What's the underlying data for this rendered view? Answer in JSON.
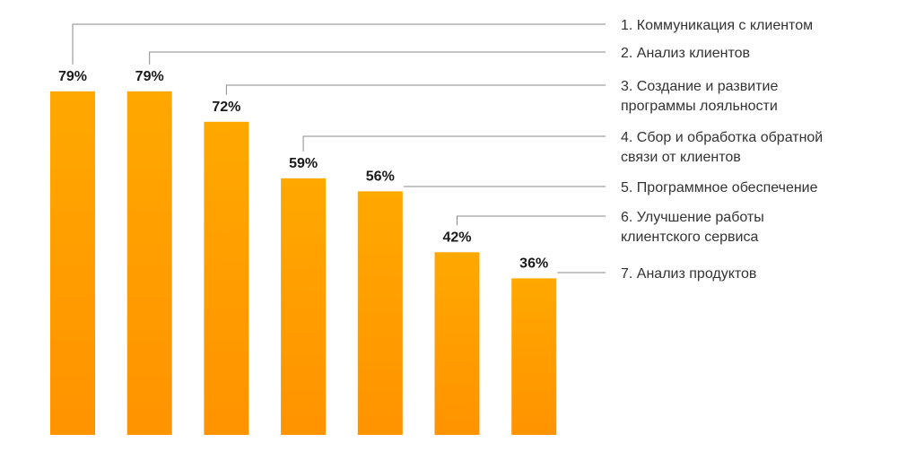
{
  "chart_data": {
    "type": "bar",
    "categories": [
      "1. Коммуникация с клиентом",
      "2. Анализ клиентов",
      "3. Создание и развитие программы лояльности",
      "4. Сбор и обработка обратной связи от клиентов",
      "5. Программное обеспечение",
      "6. Улучшение работы клиентского сервиса",
      "7. Анализ продуктов"
    ],
    "category_label_lines": [
      [
        "1. Коммуникация с клиентом"
      ],
      [
        "2. Анализ клиентов"
      ],
      [
        "3. Создание и развитие",
        "программы лояльности"
      ],
      [
        "4. Сбор и обработка обратной",
        "связи от клиентов"
      ],
      [
        "5. Программное обеспечение"
      ],
      [
        "6. Улучшение работы",
        "клиентского сервиса"
      ],
      [
        "7. Анализ продуктов"
      ]
    ],
    "values": [
      79,
      79,
      72,
      59,
      56,
      42,
      36
    ],
    "value_labels": [
      "79%",
      "79%",
      "72%",
      "59%",
      "56%",
      "42%",
      "36%"
    ],
    "ylim": [
      0,
      100
    ],
    "grid": false,
    "legend": "right",
    "colors": {
      "bar_top": "#ffa800",
      "bar_bottom": "#ff9300",
      "leader": "#8a8a8a",
      "value_text": "#1a1a1a",
      "label_text": "#333333"
    }
  }
}
